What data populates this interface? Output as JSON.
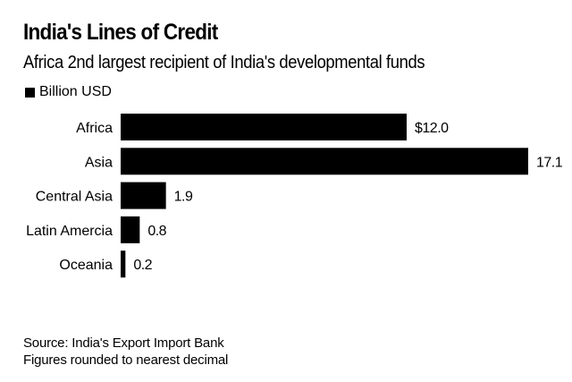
{
  "chart_data": {
    "type": "bar",
    "orientation": "horizontal",
    "title": "India's Lines of Credit",
    "subtitle": "Africa 2nd largest recipient of India's developmental funds",
    "legend": [
      {
        "name": "Billion USD",
        "color": "#000000"
      }
    ],
    "legend_position": "top-left",
    "categories": [
      "Africa",
      "Asia",
      "Central Asia",
      "Latin Amercia",
      "Oceania"
    ],
    "values": [
      12.0,
      17.1,
      1.9,
      0.8,
      0.2
    ],
    "data_labels": [
      "$12.0",
      "17.1",
      "1.9",
      "0.8",
      "0.2"
    ],
    "xlim": [
      0,
      17.1
    ],
    "grid": false,
    "bar_color": "#000000"
  },
  "footer": {
    "source": "Source: India's Export Import Bank",
    "note": "Figures rounded to nearest decimal"
  }
}
